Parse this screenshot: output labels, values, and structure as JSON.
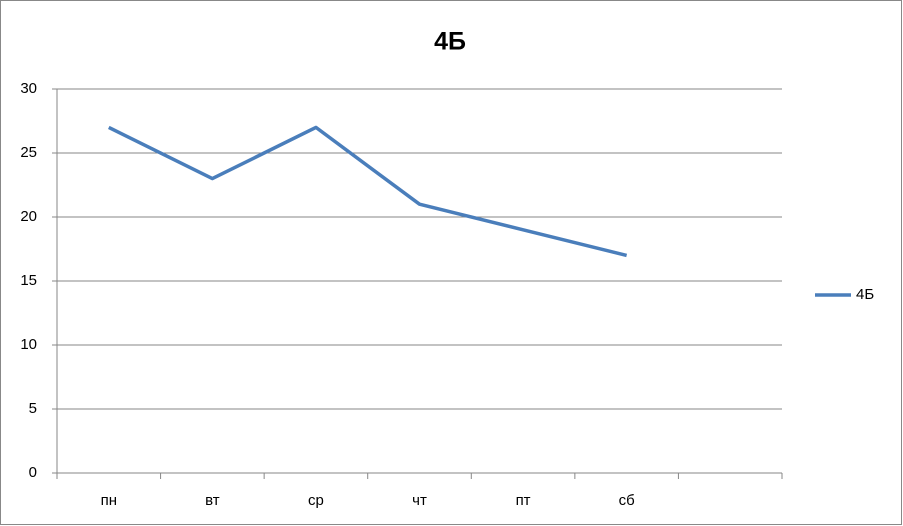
{
  "chart_data": {
    "type": "line",
    "title": "4Б",
    "categories": [
      "пн",
      "вт",
      "ср",
      "чт",
      "пт",
      "сб",
      null
    ],
    "series": [
      {
        "name": "4Б",
        "color": "#4a7ebb",
        "values": [
          27,
          23,
          27,
          21,
          19,
          17,
          null
        ]
      }
    ],
    "ylim": [
      0,
      30
    ],
    "yticks": [
      0,
      5,
      10,
      15,
      20,
      25,
      30
    ],
    "grid": true,
    "legend": "right"
  }
}
